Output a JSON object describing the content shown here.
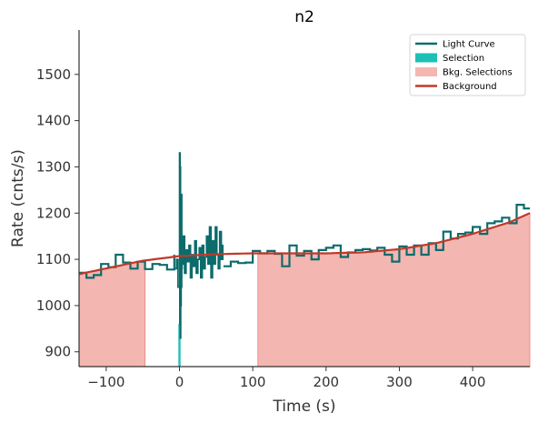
{
  "chart_data": {
    "type": "line",
    "title": "n2",
    "xlabel": "Time (s)",
    "ylabel": "Rate (cnts/s)",
    "xlim": [
      -137,
      478
    ],
    "ylim": [
      868,
      1596
    ],
    "xticks": [
      -100,
      0,
      100,
      200,
      300,
      400
    ],
    "xtick_labels": [
      "−100",
      "0",
      "100",
      "200",
      "300",
      "400"
    ],
    "yticks": [
      900,
      1000,
      1100,
      1200,
      1300,
      1400,
      1500
    ],
    "ytick_labels": [
      "900",
      "1000",
      "1100",
      "1200",
      "1300",
      "1400",
      "1500"
    ],
    "grid": false,
    "legend_position": "top-right",
    "legend": [
      {
        "label": "Light Curve",
        "kind": "line",
        "color": "#0c6b6b"
      },
      {
        "label": "Selection",
        "kind": "patch",
        "color": "#1ec0b5"
      },
      {
        "label": "Bkg. Selections",
        "kind": "patch",
        "color": "#f4b6b0"
      },
      {
        "label": "Background",
        "kind": "line",
        "color": "#c0392b"
      }
    ],
    "background_selections": [
      [
        -137,
        -47
      ],
      [
        107,
        478
      ]
    ],
    "source_selection": [
      -1.5,
      1.5
    ],
    "background_fit": {
      "name": "Background",
      "x": [
        -137,
        -50,
        0,
        50,
        100,
        150,
        200,
        250,
        300,
        350,
        400,
        450,
        478
      ],
      "y": [
        1068,
        1097,
        1107,
        1111,
        1113,
        1113,
        1113,
        1115,
        1122,
        1135,
        1155,
        1180,
        1200
      ]
    },
    "series": [
      {
        "name": "Light Curve",
        "step_x": [
          -137,
          -127,
          -117,
          -107,
          -97,
          -87,
          -77,
          -67,
          -57,
          -47,
          -37,
          -27,
          -17,
          -7
        ],
        "step_y": [
          1071,
          1060,
          1066,
          1090,
          1083,
          1110,
          1093,
          1080,
          1095,
          1079,
          1090,
          1088,
          1078,
          1108
        ],
        "spike_x": [
          0,
          0.3,
          0.6,
          0.9,
          1.2,
          1.5,
          1.8,
          2.1,
          2.4,
          2.7,
          3.0,
          3.3
        ],
        "spike_y": [
          1105,
          1330,
          960,
          1300,
          930,
          1190,
          1000,
          1130,
          1060,
          1240,
          1080,
          1110
        ],
        "fast_x": [
          -6,
          -4,
          -2,
          3,
          5,
          7,
          9,
          11,
          13,
          15,
          17,
          19,
          21,
          23,
          25,
          27,
          29,
          31,
          33,
          35,
          37,
          39,
          41,
          43,
          45,
          47,
          49,
          51,
          53,
          55,
          57,
          59
        ],
        "fast_y": [
          1080,
          1100,
          1040,
          1090,
          1150,
          1070,
          1120,
          1095,
          1130,
          1060,
          1110,
          1085,
          1140,
          1070,
          1100,
          1125,
          1060,
          1130,
          1080,
          1105,
          1150,
          1090,
          1170,
          1060,
          1140,
          1090,
          1170,
          1110,
          1080,
          1160,
          1100,
          1130
        ],
        "step2_x": [
          60,
          70,
          80,
          90,
          100,
          110,
          120,
          130,
          140,
          150,
          160,
          170,
          180,
          190,
          200,
          210,
          220,
          230,
          240,
          250,
          260,
          270,
          280,
          290,
          300,
          310,
          320,
          330,
          340,
          350,
          360,
          370,
          380,
          390,
          400,
          410,
          420,
          430,
          440,
          450,
          460,
          470
        ],
        "step2_y": [
          1085,
          1095,
          1092,
          1093,
          1118,
          1113,
          1118,
          1112,
          1085,
          1130,
          1108,
          1118,
          1100,
          1120,
          1125,
          1130,
          1105,
          1115,
          1120,
          1122,
          1119,
          1125,
          1110,
          1095,
          1128,
          1110,
          1130,
          1110,
          1135,
          1120,
          1160,
          1145,
          1155,
          1158,
          1170,
          1155,
          1178,
          1182,
          1190,
          1178,
          1218,
          1210
        ]
      }
    ]
  }
}
